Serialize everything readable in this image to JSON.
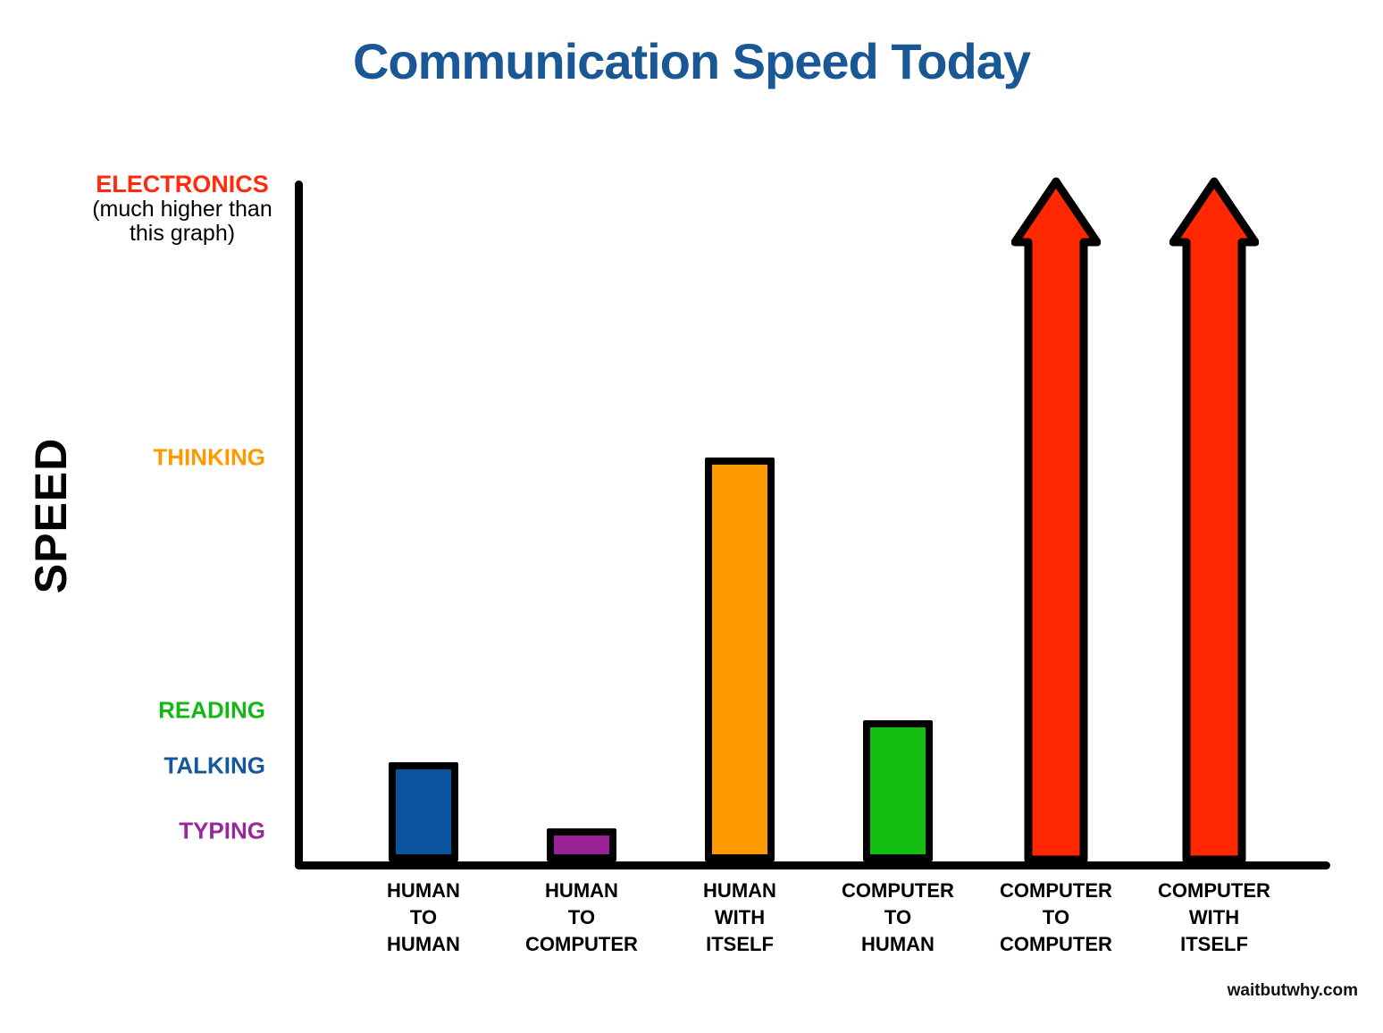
{
  "page": {
    "title": "Communication Speed Today",
    "source": "waitbutwhy.com"
  },
  "colors": {
    "title_blue": "#1A5795",
    "axis_black": "#000000",
    "background": "#FFFFFF"
  },
  "chart_data": {
    "type": "bar",
    "title": "Communication Speed Today",
    "ylabel": "SPEED",
    "xlabel": "",
    "grid": false,
    "legend": false,
    "source": "waitbutwhy.com",
    "y_axis_levels": [
      {
        "label": "TYPING",
        "color": "#98289A",
        "relative_position": 0.045
      },
      {
        "label": "TALKING",
        "color": "#14579B",
        "relative_position": 0.14
      },
      {
        "label": "READING",
        "color": "#14B814",
        "relative_position": 0.22
      },
      {
        "label": "THINKING",
        "color": "#FF9900",
        "relative_position": 0.59
      },
      {
        "label": "ELECTRONICS",
        "color": "#FF2B0C",
        "relative_position": 0.99,
        "note_lines": [
          "(much higher than",
          "this graph)"
        ]
      }
    ],
    "bars": [
      {
        "category_lines": [
          "HUMAN",
          "TO",
          "HUMAN"
        ],
        "level": "TALKING",
        "relative_height": 0.15,
        "color": "#0B559E",
        "shape": "bar"
      },
      {
        "category_lines": [
          "HUMAN",
          "TO",
          "COMPUTER"
        ],
        "level": "TYPING",
        "relative_height": 0.05,
        "color": "#962296",
        "shape": "bar"
      },
      {
        "category_lines": [
          "HUMAN",
          "WITH",
          "ITSELF"
        ],
        "level": "THINKING",
        "relative_height": 0.59,
        "color": "#FF9900",
        "shape": "bar"
      },
      {
        "category_lines": [
          "COMPUTER",
          "TO",
          "HUMAN"
        ],
        "level": "READING",
        "relative_height": 0.21,
        "color": "#12BE12",
        "shape": "bar"
      },
      {
        "category_lines": [
          "COMPUTER",
          "TO",
          "COMPUTER"
        ],
        "level": "ELECTRONICS",
        "relative_height": 1.0,
        "color": "#FF2800",
        "shape": "arrow"
      },
      {
        "category_lines": [
          "COMPUTER",
          "WITH",
          "ITSELF"
        ],
        "level": "ELECTRONICS",
        "relative_height": 1.0,
        "color": "#FF2800",
        "shape": "arrow"
      }
    ]
  }
}
